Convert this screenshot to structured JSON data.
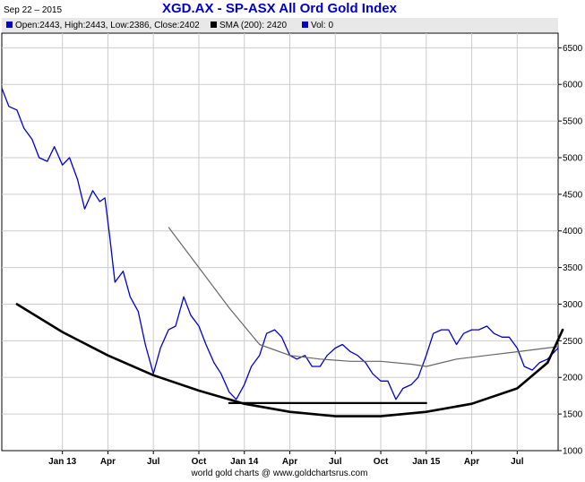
{
  "header": {
    "date": "Sep 22 – 2015",
    "title": "XGD.AX - SP-ASX All Ord Gold Index"
  },
  "legend": [
    {
      "label": "Open:2443, High:2443, Low:2386, Close:2402",
      "color": "#0000cc"
    },
    {
      "label": "SMA (200): 2420",
      "color": "#000000"
    },
    {
      "label": "Vol: 0",
      "color": "#0000cc"
    }
  ],
  "footer": "world gold charts @ www.goldchartsrus.com",
  "colors": {
    "price": "#0000cc",
    "sma": "#666666",
    "curve": "#000000",
    "grid": "#cccccc",
    "legend_bg": "#e8e8e8"
  },
  "chart_data": {
    "type": "line",
    "title": "XGD.AX - SP-ASX All Ord Gold Index",
    "yaxis_side": "right",
    "ylim": [
      1000,
      6700
    ],
    "yticks": [
      1000,
      1500,
      2000,
      2500,
      3000,
      3500,
      4000,
      4500,
      5000,
      5500,
      6000,
      6500
    ],
    "xlim": [
      "2012-09",
      "2015-09-22"
    ],
    "xticks": [
      {
        "label": "Jan 13",
        "t": "2013-01"
      },
      {
        "label": "Apr",
        "t": "2013-04"
      },
      {
        "label": "Jul",
        "t": "2013-07"
      },
      {
        "label": "Oct",
        "t": "2013-10"
      },
      {
        "label": "Jan 14",
        "t": "2014-01"
      },
      {
        "label": "Apr",
        "t": "2014-04"
      },
      {
        "label": "Jul",
        "t": "2014-07"
      },
      {
        "label": "Oct",
        "t": "2014-10"
      },
      {
        "label": "Jan 15",
        "t": "2015-01"
      },
      {
        "label": "Apr",
        "t": "2015-04"
      },
      {
        "label": "Jul",
        "t": "2015-07"
      }
    ],
    "grid": true,
    "series": [
      {
        "name": "Close",
        "color": "#0000cc",
        "points": [
          [
            "2012-09-01",
            5950
          ],
          [
            "2012-09-15",
            5700
          ],
          [
            "2012-10-01",
            5650
          ],
          [
            "2012-10-15",
            5400
          ],
          [
            "2012-11-01",
            5250
          ],
          [
            "2012-11-15",
            5000
          ],
          [
            "2012-12-01",
            4950
          ],
          [
            "2012-12-15",
            5150
          ],
          [
            "2013-01-01",
            4900
          ],
          [
            "2013-01-15",
            5000
          ],
          [
            "2013-02-01",
            4700
          ],
          [
            "2013-02-15",
            4300
          ],
          [
            "2013-03-01",
            4550
          ],
          [
            "2013-03-15",
            4400
          ],
          [
            "2013-03-25",
            4450
          ],
          [
            "2013-04-05",
            3900
          ],
          [
            "2013-04-15",
            3300
          ],
          [
            "2013-05-01",
            3450
          ],
          [
            "2013-05-15",
            3100
          ],
          [
            "2013-06-01",
            2900
          ],
          [
            "2013-06-15",
            2450
          ],
          [
            "2013-07-01",
            2050
          ],
          [
            "2013-07-15",
            2400
          ],
          [
            "2013-08-01",
            2650
          ],
          [
            "2013-08-15",
            2700
          ],
          [
            "2013-09-01",
            3100
          ],
          [
            "2013-09-15",
            2850
          ],
          [
            "2013-10-01",
            2700
          ],
          [
            "2013-10-15",
            2450
          ],
          [
            "2013-11-01",
            2200
          ],
          [
            "2013-11-15",
            2050
          ],
          [
            "2013-12-01",
            1800
          ],
          [
            "2013-12-15",
            1700
          ],
          [
            "2014-01-01",
            1900
          ],
          [
            "2014-01-15",
            2150
          ],
          [
            "2014-02-01",
            2300
          ],
          [
            "2014-02-15",
            2600
          ],
          [
            "2014-03-01",
            2650
          ],
          [
            "2014-03-15",
            2550
          ],
          [
            "2014-04-01",
            2300
          ],
          [
            "2014-04-15",
            2250
          ],
          [
            "2014-05-01",
            2300
          ],
          [
            "2014-05-15",
            2150
          ],
          [
            "2014-06-01",
            2150
          ],
          [
            "2014-06-15",
            2300
          ],
          [
            "2014-07-01",
            2400
          ],
          [
            "2014-07-15",
            2450
          ],
          [
            "2014-08-01",
            2350
          ],
          [
            "2014-08-15",
            2300
          ],
          [
            "2014-09-01",
            2200
          ],
          [
            "2014-09-15",
            2050
          ],
          [
            "2014-10-01",
            1950
          ],
          [
            "2014-10-15",
            1950
          ],
          [
            "2014-11-01",
            1700
          ],
          [
            "2014-11-15",
            1850
          ],
          [
            "2014-12-01",
            1900
          ],
          [
            "2014-12-15",
            2000
          ],
          [
            "2015-01-01",
            2300
          ],
          [
            "2015-01-15",
            2600
          ],
          [
            "2015-02-01",
            2650
          ],
          [
            "2015-02-15",
            2650
          ],
          [
            "2015-03-01",
            2450
          ],
          [
            "2015-03-15",
            2600
          ],
          [
            "2015-04-01",
            2650
          ],
          [
            "2015-04-15",
            2650
          ],
          [
            "2015-05-01",
            2700
          ],
          [
            "2015-05-15",
            2600
          ],
          [
            "2015-06-01",
            2550
          ],
          [
            "2015-06-15",
            2550
          ],
          [
            "2015-07-01",
            2400
          ],
          [
            "2015-07-15",
            2150
          ],
          [
            "2015-08-01",
            2100
          ],
          [
            "2015-08-15",
            2200
          ],
          [
            "2015-09-01",
            2250
          ],
          [
            "2015-09-22",
            2402
          ]
        ]
      },
      {
        "name": "SMA (200)",
        "color": "#666666",
        "points": [
          [
            "2013-08-01",
            4050
          ],
          [
            "2013-10-01",
            3500
          ],
          [
            "2013-12-01",
            2950
          ],
          [
            "2014-01-01",
            2700
          ],
          [
            "2014-02-01",
            2450
          ],
          [
            "2014-04-01",
            2300
          ],
          [
            "2014-06-01",
            2250
          ],
          [
            "2014-08-01",
            2220
          ],
          [
            "2014-10-01",
            2220
          ],
          [
            "2014-12-01",
            2180
          ],
          [
            "2015-01-01",
            2150
          ],
          [
            "2015-03-01",
            2250
          ],
          [
            "2015-05-01",
            2300
          ],
          [
            "2015-07-01",
            2350
          ],
          [
            "2015-09-22",
            2420
          ]
        ]
      }
    ],
    "annotations": [
      {
        "type": "support-line",
        "color": "#000000",
        "points": [
          [
            "2013-12-01",
            1650
          ],
          [
            "2015-01-01",
            1650
          ]
        ]
      },
      {
        "type": "bowl-curve",
        "color": "#000000",
        "points": [
          [
            "2012-10-01",
            3000
          ],
          [
            "2013-01-01",
            2620
          ],
          [
            "2013-04-01",
            2300
          ],
          [
            "2013-07-01",
            2030
          ],
          [
            "2013-10-01",
            1820
          ],
          [
            "2014-01-01",
            1640
          ],
          [
            "2014-04-01",
            1530
          ],
          [
            "2014-07-01",
            1470
          ],
          [
            "2014-10-01",
            1470
          ],
          [
            "2015-01-01",
            1530
          ],
          [
            "2015-04-01",
            1640
          ],
          [
            "2015-07-01",
            1850
          ],
          [
            "2015-09-01",
            2200
          ],
          [
            "2015-10-01",
            2650
          ]
        ]
      }
    ]
  }
}
